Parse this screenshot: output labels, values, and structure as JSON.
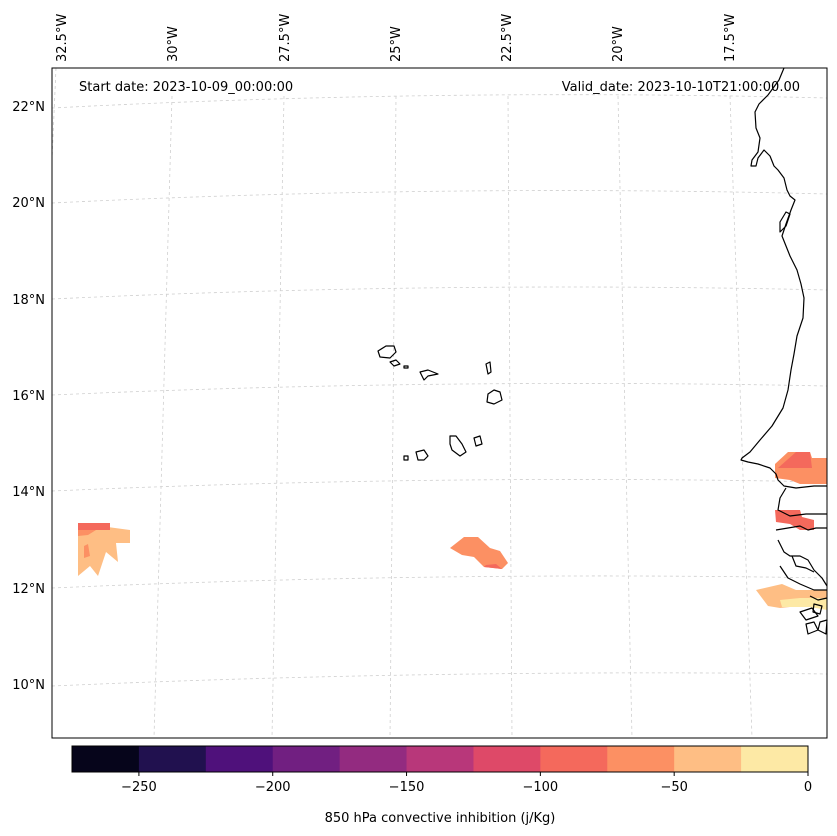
{
  "header": {
    "start_label": "Start date: 2023-10-09_00:00:00",
    "valid_label": "Valid_date: 2023-10-10T21:00:00.00"
  },
  "axes": {
    "lon_labels": [
      "32.5°W",
      "30°W",
      "27.5°W",
      "25°W",
      "22.5°W",
      "20°W",
      "17.5°W"
    ],
    "lat_labels": [
      "22°N",
      "20°N",
      "18°N",
      "16°N",
      "14°N",
      "12°N",
      "10°N"
    ]
  },
  "colorbar": {
    "label": "850 hPa convective inhibition (j/Kg)",
    "ticks": [
      "−250",
      "−200",
      "−150",
      "−100",
      "−50",
      "0"
    ],
    "tick_values": [
      -250,
      -200,
      -150,
      -100,
      -50,
      0
    ],
    "range": [
      -275,
      0
    ],
    "bins": [
      {
        "min": -275,
        "max": -250,
        "color": "#06051b"
      },
      {
        "min": -250,
        "max": -225,
        "color": "#21114f"
      },
      {
        "min": -225,
        "max": -200,
        "color": "#4f117b"
      },
      {
        "min": -200,
        "max": -175,
        "color": "#711f81"
      },
      {
        "min": -175,
        "max": -150,
        "color": "#932b80"
      },
      {
        "min": -150,
        "max": -125,
        "color": "#b8377a"
      },
      {
        "min": -125,
        "max": -100,
        "color": "#de4968"
      },
      {
        "min": -100,
        "max": -75,
        "color": "#f4695c"
      },
      {
        "min": -75,
        "max": -50,
        "color": "#fc9063"
      },
      {
        "min": -50,
        "max": -25,
        "color": "#febe84"
      },
      {
        "min": -25,
        "max": 0,
        "color": "#fde9a5"
      }
    ]
  },
  "colors": {
    "coast": "#000000",
    "grid": "#cfcfcf",
    "frame": "#000000"
  }
}
